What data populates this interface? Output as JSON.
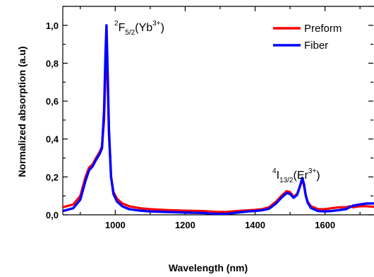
{
  "chart_data": {
    "type": "line",
    "title": "",
    "xlabel": "Wavelength (nm)",
    "ylabel": "Normalized absorption (a.u)",
    "xlim": [
      850,
      1740
    ],
    "ylim": [
      0,
      1.1
    ],
    "grid": false,
    "legend_position": "top-right",
    "x_ticks": [
      1000,
      1200,
      1400,
      1600
    ],
    "x_tick_labels": [
      "1000",
      "1200",
      "1400",
      "1600"
    ],
    "y_ticks": [
      0,
      0.2,
      0.4,
      0.6,
      0.8,
      1.0
    ],
    "y_tick_labels": [
      "0,0",
      "0,2",
      "0,4",
      "0,6",
      "0,8",
      "1,0"
    ],
    "series": [
      {
        "name": "Preform",
        "color": "#ff0000",
        "x": [
          850,
          880,
          900,
          915,
          925,
          935,
          945,
          955,
          962,
          968,
          972,
          975,
          978,
          982,
          988,
          995,
          1005,
          1020,
          1040,
          1070,
          1100,
          1150,
          1200,
          1250,
          1290,
          1320,
          1350,
          1380,
          1400,
          1420,
          1440,
          1460,
          1475,
          1490,
          1500,
          1510,
          1520,
          1528,
          1535,
          1540,
          1545,
          1550,
          1560,
          1580,
          1600,
          1620,
          1640,
          1660,
          1670,
          1680,
          1700,
          1720,
          1740
        ],
        "y": [
          0.04,
          0.055,
          0.1,
          0.2,
          0.25,
          0.265,
          0.3,
          0.33,
          0.36,
          0.5,
          0.75,
          0.96,
          0.72,
          0.42,
          0.2,
          0.12,
          0.085,
          0.06,
          0.045,
          0.035,
          0.03,
          0.025,
          0.022,
          0.02,
          0.015,
          0.016,
          0.02,
          0.024,
          0.026,
          0.03,
          0.04,
          0.07,
          0.1,
          0.125,
          0.12,
          0.095,
          0.11,
          0.15,
          0.185,
          0.15,
          0.1,
          0.07,
          0.045,
          0.03,
          0.03,
          0.035,
          0.04,
          0.04,
          0.045,
          0.04,
          0.045,
          0.045,
          0.042
        ]
      },
      {
        "name": "Fiber",
        "color": "#0000ff",
        "x": [
          850,
          880,
          900,
          915,
          925,
          935,
          945,
          955,
          962,
          968,
          972,
          975,
          978,
          982,
          988,
          995,
          1005,
          1020,
          1040,
          1070,
          1100,
          1150,
          1200,
          1250,
          1290,
          1320,
          1350,
          1380,
          1400,
          1420,
          1440,
          1460,
          1475,
          1490,
          1500,
          1510,
          1520,
          1528,
          1535,
          1540,
          1545,
          1550,
          1560,
          1580,
          1600,
          1620,
          1640,
          1660,
          1670,
          1680,
          1700,
          1720,
          1740
        ],
        "y": [
          0.02,
          0.035,
          0.08,
          0.18,
          0.235,
          0.255,
          0.29,
          0.32,
          0.35,
          0.55,
          0.85,
          1.0,
          0.78,
          0.45,
          0.2,
          0.11,
          0.07,
          0.045,
          0.03,
          0.022,
          0.018,
          0.015,
          0.012,
          0.01,
          0.005,
          0.006,
          0.012,
          0.018,
          0.02,
          0.024,
          0.032,
          0.06,
          0.09,
          0.115,
          0.11,
          0.09,
          0.105,
          0.15,
          0.195,
          0.16,
          0.1,
          0.065,
          0.035,
          0.02,
          0.018,
          0.02,
          0.025,
          0.03,
          0.04,
          0.048,
          0.055,
          0.06,
          0.06
        ]
      }
    ],
    "annotations": [
      {
        "text": "2",
        "role": "peak-yb-superscript"
      },
      {
        "text": "F",
        "role": "peak-yb-base"
      },
      {
        "text": "5/2",
        "role": "peak-yb-subscript"
      },
      {
        "text": "(Yb",
        "role": "peak-yb-ion"
      },
      {
        "text": "3+",
        "role": "peak-yb-charge"
      },
      {
        "text": ")",
        "role": "peak-yb-close"
      },
      {
        "text": "4",
        "role": "peak-er-superscript"
      },
      {
        "text": "I",
        "role": "peak-er-base"
      },
      {
        "text": "13/2",
        "role": "peak-er-subscript"
      },
      {
        "text": "(Er",
        "role": "peak-er-ion"
      },
      {
        "text": "3+",
        "role": "peak-er-charge"
      },
      {
        "text": ")",
        "role": "peak-er-close"
      }
    ]
  }
}
